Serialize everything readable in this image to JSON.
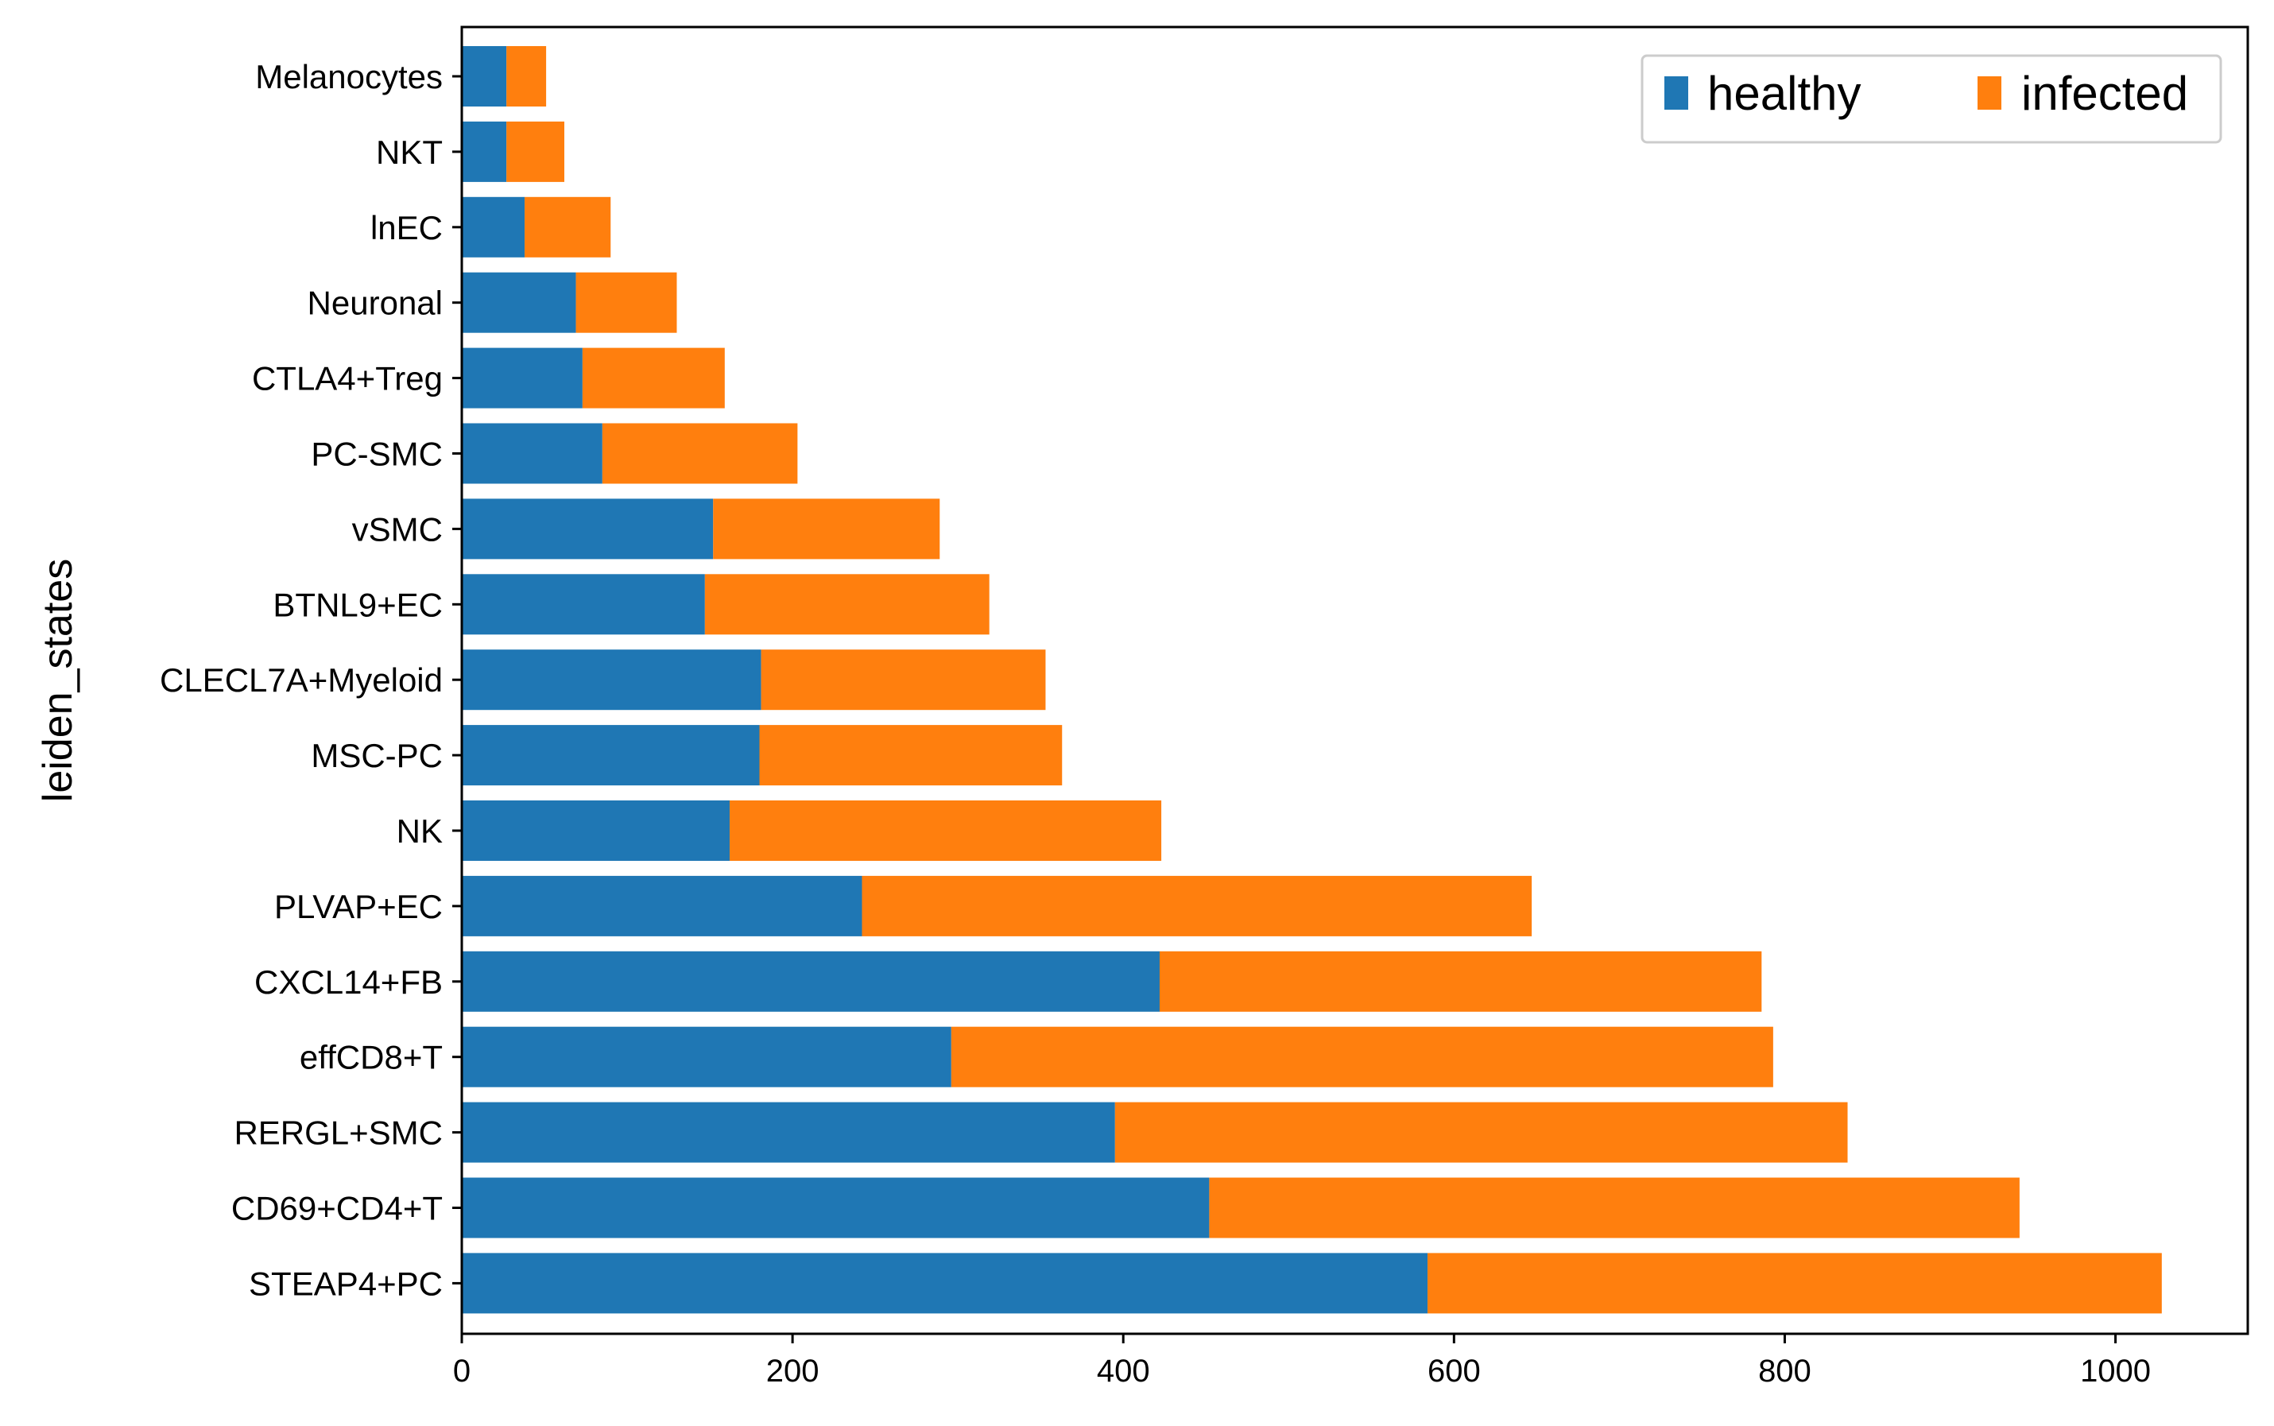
{
  "chart_data": {
    "type": "bar",
    "orientation": "horizontal",
    "stacked": true,
    "categories": [
      "Melanocytes",
      "NKT",
      "lnEC",
      "Neuronal",
      "CTLA4+Treg",
      "PC-SMC",
      "vSMC",
      "BTNL9+EC",
      "CLECL7A+Myeloid",
      "MSC-PC",
      "NK",
      "PLVAP+EC",
      "CXCL14+FB",
      "effCD8+T",
      "RERGL+SMC",
      "CD69+CD4+T",
      "STEAP4+PC"
    ],
    "series": [
      {
        "name": "healthy",
        "color": "#1f77b4",
        "values": [
          27,
          27,
          38,
          69,
          73,
          85,
          152,
          147,
          181,
          180,
          162,
          242,
          422,
          296,
          395,
          452,
          584
        ]
      },
      {
        "name": "infected",
        "color": "#ff7f0e",
        "values": [
          24,
          35,
          52,
          61,
          86,
          118,
          137,
          172,
          172,
          183,
          261,
          405,
          364,
          497,
          443,
          490,
          444
        ]
      }
    ],
    "xlabel": "",
    "ylabel": "leiden_states",
    "xlim": [
      0,
      1080
    ],
    "xticks": [
      0,
      200,
      400,
      600,
      800,
      1000
    ],
    "grid": false,
    "legend_placement": "top-right",
    "legend_columns": 2
  }
}
